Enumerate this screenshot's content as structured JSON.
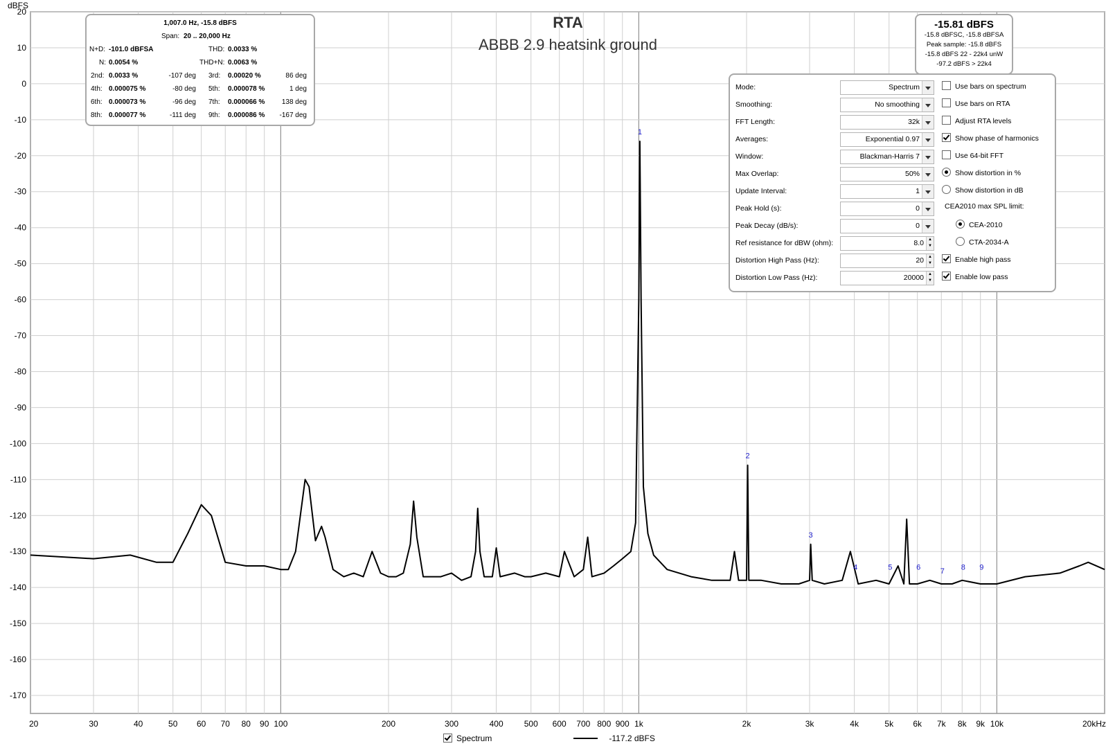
{
  "title": "RTA",
  "subtitle": "ABBB 2.9 heatsink ground",
  "distortion_panel": {
    "cursor": "1,007.0 Hz, -15.8 dBFS",
    "span_label": "Span:",
    "span_value": "20 .. 20,000 Hz",
    "nd_label": "N+D:",
    "nd_value": "-101.0 dBFSA",
    "thd_label": "THD:",
    "thd_value": "0.0033 %",
    "n_label": "N:",
    "n_value": "0.0054 %",
    "thdn_label": "THD+N:",
    "thdn_value": "0.0063 %",
    "harmonics": [
      {
        "label": "2nd:",
        "value": "0.0033 %",
        "phase": "-107 deg",
        "label2": "3rd:",
        "value2": "0.00020 %",
        "phase2": "86 deg"
      },
      {
        "label": "4th:",
        "value": "0.000075 %",
        "phase": "-80 deg",
        "label2": "5th:",
        "value2": "0.000078 %",
        "phase2": "1 deg"
      },
      {
        "label": "6th:",
        "value": "0.000073 %",
        "phase": "-96 deg",
        "label2": "7th:",
        "value2": "0.000066 %",
        "phase2": "138 deg"
      },
      {
        "label": "8th:",
        "value": "0.000077 %",
        "phase": "-111 deg",
        "label2": "9th:",
        "value2": "0.000086 %",
        "phase2": "-167 deg"
      }
    ]
  },
  "level_panel": {
    "main": "-15.81 dBFS",
    "line1": "-15.8 dBFSC, -15.8 dBFSA",
    "line2": "Peak sample: -15.8 dBFS",
    "line3": "-15.8 dBFS 22 - 22k4 unW",
    "line4": "-97.2 dBFS > 22k4"
  },
  "settings": {
    "rows": [
      {
        "label": "Mode:",
        "value": "Spectrum",
        "control": "dropdown"
      },
      {
        "label": "Smoothing:",
        "value": "No  smoothing",
        "control": "dropdown"
      },
      {
        "label": "FFT Length:",
        "value": "32k",
        "control": "dropdown"
      },
      {
        "label": "Averages:",
        "value": "Exponential 0.97",
        "control": "dropdown"
      },
      {
        "label": "Window:",
        "value": "Blackman-Harris 7",
        "control": "dropdown"
      },
      {
        "label": "Max Overlap:",
        "value": "50%",
        "control": "dropdown"
      },
      {
        "label": "Update Interval:",
        "value": "1",
        "control": "dropdown"
      },
      {
        "label": "Peak Hold (s):",
        "value": "0",
        "control": "dropdown"
      },
      {
        "label": "Peak Decay (dB/s):",
        "value": "0",
        "control": "dropdown"
      },
      {
        "label": "Ref resistance for dBW (ohm):",
        "value": "8.0",
        "control": "spinner"
      },
      {
        "label": "Distortion High Pass (Hz):",
        "value": "20",
        "control": "spinner"
      },
      {
        "label": "Distortion Low Pass (Hz):",
        "value": "20000",
        "control": "spinner"
      }
    ],
    "options": [
      {
        "label": "Use bars on spectrum",
        "type": "checkbox",
        "checked": false
      },
      {
        "label": "Use bars on RTA",
        "type": "checkbox",
        "checked": false
      },
      {
        "label": "Adjust RTA levels",
        "type": "checkbox",
        "checked": false
      },
      {
        "label": "Show phase of harmonics",
        "type": "checkbox",
        "checked": true
      },
      {
        "label": "Use 64-bit FFT",
        "type": "checkbox",
        "checked": false
      },
      {
        "label": "Show distortion in %",
        "type": "radio",
        "checked": true
      },
      {
        "label": "Show distortion in dB",
        "type": "radio",
        "checked": false
      },
      {
        "label": "CEA2010 max SPL limit:",
        "type": "label",
        "checked": false
      },
      {
        "label": "CEA-2010",
        "type": "radio-sub",
        "checked": true
      },
      {
        "label": "CTA-2034-A",
        "type": "radio-sub",
        "checked": false
      },
      {
        "label": "Enable high pass",
        "type": "checkbox",
        "checked": true
      },
      {
        "label": "Enable low pass",
        "type": "checkbox",
        "checked": true
      }
    ]
  },
  "legend": {
    "series_label": "Spectrum",
    "series_checked": true,
    "series_value": "-117.2 dBFS"
  },
  "chart_data": {
    "type": "line",
    "title": "RTA",
    "subtitle": "ABBB 2.9 heatsink ground",
    "ylabel": "dBFS",
    "xlabel": "",
    "xscale": "log",
    "xlim": [
      20,
      20000
    ],
    "ylim": [
      -175,
      20
    ],
    "grid": true,
    "y_ticks": [
      20,
      10,
      0,
      -10,
      -20,
      -30,
      -40,
      -50,
      -60,
      -70,
      -80,
      -90,
      -100,
      -110,
      -120,
      -130,
      -140,
      -150,
      -160,
      -170
    ],
    "x_ticks": [
      {
        "v": 20,
        "label": "20"
      },
      {
        "v": 30,
        "label": "30"
      },
      {
        "v": 40,
        "label": "40"
      },
      {
        "v": 50,
        "label": "50"
      },
      {
        "v": 60,
        "label": "60"
      },
      {
        "v": 70,
        "label": "70"
      },
      {
        "v": 80,
        "label": "80"
      },
      {
        "v": 90,
        "label": "90"
      },
      {
        "v": 100,
        "label": "100"
      },
      {
        "v": 200,
        "label": "200"
      },
      {
        "v": 300,
        "label": "300"
      },
      {
        "v": 400,
        "label": "400"
      },
      {
        "v": 500,
        "label": "500"
      },
      {
        "v": 600,
        "label": "600"
      },
      {
        "v": 700,
        "label": "700"
      },
      {
        "v": 800,
        "label": "800"
      },
      {
        "v": 900,
        "label": "900"
      },
      {
        "v": 1000,
        "label": "1k"
      },
      {
        "v": 2000,
        "label": "2k"
      },
      {
        "v": 3000,
        "label": "3k"
      },
      {
        "v": 4000,
        "label": "4k"
      },
      {
        "v": 5000,
        "label": "5k"
      },
      {
        "v": 6000,
        "label": "6k"
      },
      {
        "v": 7000,
        "label": "7k"
      },
      {
        "v": 8000,
        "label": "8k"
      },
      {
        "v": 9000,
        "label": "9k"
      },
      {
        "v": 10000,
        "label": "10k"
      },
      {
        "v": 20000,
        "label": "20kHz"
      }
    ],
    "series": [
      {
        "name": "Spectrum",
        "color": "#000000",
        "x": [
          20,
          30,
          38,
          45,
          50,
          55,
          60,
          64,
          70,
          80,
          90,
          100,
          105,
          110,
          117,
          120,
          125,
          130,
          133,
          140,
          150,
          160,
          170,
          180,
          190,
          200,
          210,
          220,
          230,
          235,
          240,
          250,
          260,
          280,
          300,
          320,
          340,
          350,
          355,
          360,
          370,
          390,
          400,
          410,
          450,
          480,
          500,
          550,
          600,
          620,
          660,
          700,
          720,
          740,
          800,
          850,
          900,
          950,
          980,
          1000,
          1007,
          1015,
          1030,
          1060,
          1100,
          1200,
          1400,
          1600,
          1800,
          1850,
          1900,
          2000,
          2014,
          2030,
          2200,
          2500,
          2800,
          3000,
          3021,
          3050,
          3300,
          3700,
          3900,
          4100,
          4600,
          5000,
          5300,
          5500,
          5600,
          5700,
          6000,
          6500,
          7000,
          7500,
          8000,
          9000,
          10000,
          12000,
          15000,
          17000,
          18000,
          20000
        ],
        "y": [
          -131,
          -132,
          -131,
          -133,
          -133,
          -125,
          -117,
          -120,
          -133,
          -134,
          -134,
          -135,
          -135,
          -130,
          -110,
          -112,
          -127,
          -123,
          -126,
          -135,
          -137,
          -136,
          -137,
          -130,
          -136,
          -137,
          -137,
          -136,
          -128,
          -116,
          -126,
          -137,
          -137,
          -137,
          -136,
          -138,
          -137,
          -130,
          -118,
          -130,
          -137,
          -137,
          -129,
          -137,
          -136,
          -137,
          -137,
          -136,
          -137,
          -130,
          -137,
          -135,
          -126,
          -137,
          -136,
          -134,
          -132,
          -130,
          -122,
          -60,
          -16,
          -60,
          -112,
          -125,
          -131,
          -135,
          -137,
          -138,
          -138,
          -130,
          -138,
          -138,
          -106,
          -138,
          -138,
          -139,
          -139,
          -138,
          -128,
          -138,
          -139,
          -138,
          -130,
          -139,
          -138,
          -139,
          -134,
          -139,
          -121,
          -139,
          -139,
          -138,
          -139,
          -139,
          -138,
          -139,
          -139,
          -137,
          -136,
          -134,
          -133,
          -135
        ]
      }
    ],
    "harmonic_markers": [
      {
        "label": "1",
        "x": 1007,
        "y": -16
      },
      {
        "label": "2",
        "x": 2014,
        "y": -106
      },
      {
        "label": "3",
        "x": 3021,
        "y": -128
      },
      {
        "label": "4",
        "x": 4028,
        "y": -137
      },
      {
        "label": "5",
        "x": 5035,
        "y": -137
      },
      {
        "label": "6",
        "x": 6042,
        "y": -137
      },
      {
        "label": "7",
        "x": 7049,
        "y": -138
      },
      {
        "label": "8",
        "x": 8056,
        "y": -137
      },
      {
        "label": "9",
        "x": 9063,
        "y": -137
      }
    ],
    "legend_placement": "bottom-center"
  }
}
